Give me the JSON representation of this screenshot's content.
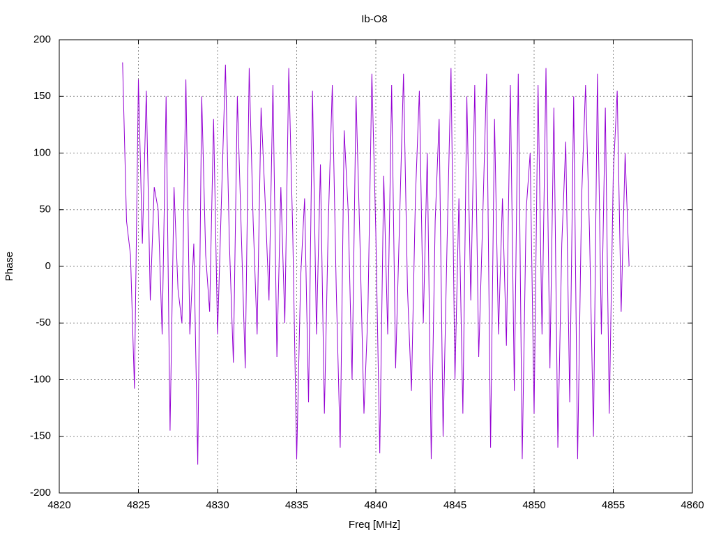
{
  "chart_data": {
    "type": "line",
    "title": "Ib-O8",
    "x_label": "Freq [MHz]",
    "y_label": "Phase",
    "color": "#9400d3",
    "grid": true,
    "xlim": [
      4820,
      4860
    ],
    "xticks": [
      4820,
      4825,
      4830,
      4835,
      4840,
      4845,
      4850,
      4855,
      4860
    ],
    "ylim": [
      -200,
      200
    ],
    "yticks": [
      -200,
      -150,
      -100,
      -50,
      0,
      50,
      100,
      150,
      200
    ],
    "x": [
      4824,
      4824.25,
      4824.5,
      4824.75,
      4825,
      4825.25,
      4825.5,
      4825.75,
      4826,
      4826.25,
      4826.5,
      4826.75,
      4827,
      4827.25,
      4827.5,
      4827.75,
      4828,
      4828.25,
      4828.5,
      4828.75,
      4829,
      4829.25,
      4829.5,
      4829.75,
      4830,
      4830.25,
      4830.5,
      4830.75,
      4831,
      4831.25,
      4831.5,
      4831.75,
      4832,
      4832.25,
      4832.5,
      4832.75,
      4833,
      4833.25,
      4833.5,
      4833.75,
      4834,
      4834.25,
      4834.5,
      4834.75,
      4835,
      4835.25,
      4835.5,
      4835.75,
      4836,
      4836.25,
      4836.5,
      4836.75,
      4837,
      4837.25,
      4837.5,
      4837.75,
      4838,
      4838.25,
      4838.5,
      4838.75,
      4839,
      4839.25,
      4839.5,
      4839.75,
      4840,
      4840.25,
      4840.5,
      4840.75,
      4841,
      4841.25,
      4841.5,
      4841.75,
      4842,
      4842.25,
      4842.5,
      4842.75,
      4843,
      4843.25,
      4843.5,
      4843.75,
      4844,
      4844.25,
      4844.5,
      4844.75,
      4845,
      4845.25,
      4845.5,
      4845.75,
      4846,
      4846.25,
      4846.5,
      4846.75,
      4847,
      4847.25,
      4847.5,
      4847.75,
      4848,
      4848.25,
      4848.5,
      4848.75,
      4849,
      4849.25,
      4849.5,
      4849.75,
      4850,
      4850.25,
      4850.5,
      4850.75,
      4851,
      4851.25,
      4851.5,
      4851.75,
      4852,
      4852.25,
      4852.5,
      4852.75,
      4853,
      4853.25,
      4853.5,
      4853.75,
      4854,
      4854.25,
      4854.5,
      4854.75,
      4855,
      4855.25,
      4855.5,
      4855.75,
      4856
    ],
    "values": [
      180,
      40,
      10,
      -108,
      165,
      20,
      155,
      -30,
      70,
      50,
      -60,
      150,
      -145,
      70,
      -20,
      -50,
      165,
      -60,
      20,
      -175,
      150,
      10,
      -40,
      130,
      -60,
      60,
      178,
      20,
      -85,
      150,
      30,
      -90,
      175,
      40,
      -60,
      140,
      60,
      -30,
      160,
      -80,
      70,
      -50,
      175,
      30,
      -170,
      -10,
      60,
      -120,
      155,
      -60,
      90,
      -130,
      40,
      160,
      -20,
      -160,
      120,
      50,
      -100,
      150,
      20,
      -130,
      -40,
      170,
      30,
      -165,
      80,
      -60,
      160,
      -90,
      40,
      170,
      -20,
      -110,
      60,
      155,
      -50,
      100,
      -170,
      40,
      130,
      -150,
      20,
      175,
      -100,
      60,
      -130,
      150,
      -30,
      160,
      -80,
      40,
      170,
      -160,
      130,
      -60,
      60,
      -70,
      160,
      -110,
      170,
      -170,
      50,
      100,
      -130,
      160,
      -60,
      175,
      -90,
      140,
      -160,
      20,
      110,
      -120,
      150,
      -170,
      60,
      160,
      30,
      -150,
      170,
      -60,
      140,
      -130,
      80,
      155,
      -40,
      100,
      0
    ]
  }
}
